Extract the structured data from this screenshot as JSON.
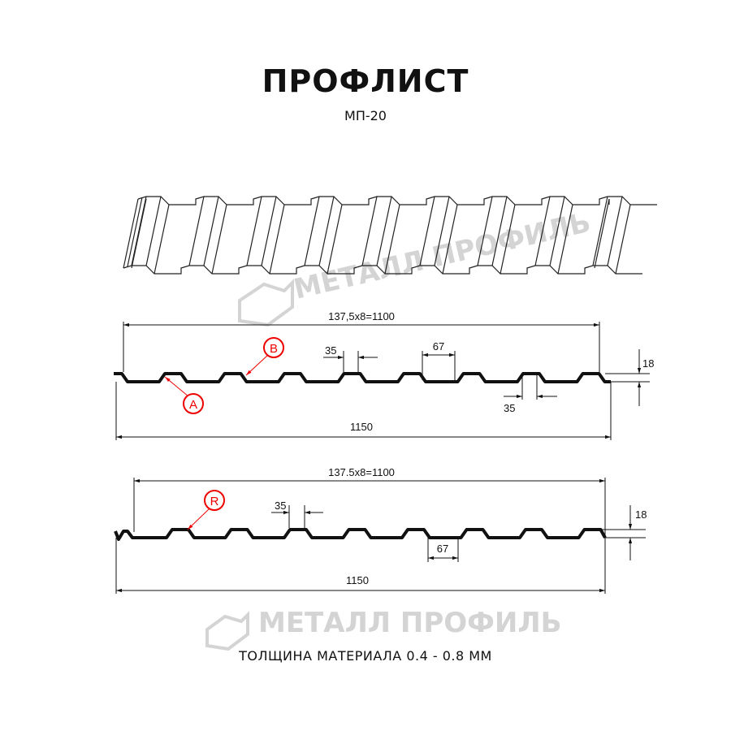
{
  "title": "ПРОФЛИСТ",
  "subtitle": "МП-20",
  "footer": "ТОЛЩИНА МАТЕРИАЛА 0.4 - 0.8 ММ",
  "watermark": "МЕТАЛЛ ПРОФИЛЬ",
  "colors": {
    "profile": "#111111",
    "callout": "#e00000",
    "watermark": "#d4d4d4"
  },
  "profile_a": {
    "pitch_dim": "137,5x8=1100",
    "total_dim": "1150",
    "top_width_dim": "35",
    "bottom_top_width_dim": "35",
    "bottom_width_dim": "67",
    "height_dim": "18",
    "callouts": [
      "A",
      "B"
    ]
  },
  "profile_b": {
    "pitch_dim": "137.5x8=1100",
    "total_dim": "1150",
    "top_width_dim": "35",
    "bottom_width_dim": "67",
    "height_dim": "18",
    "callouts": [
      "R"
    ]
  }
}
